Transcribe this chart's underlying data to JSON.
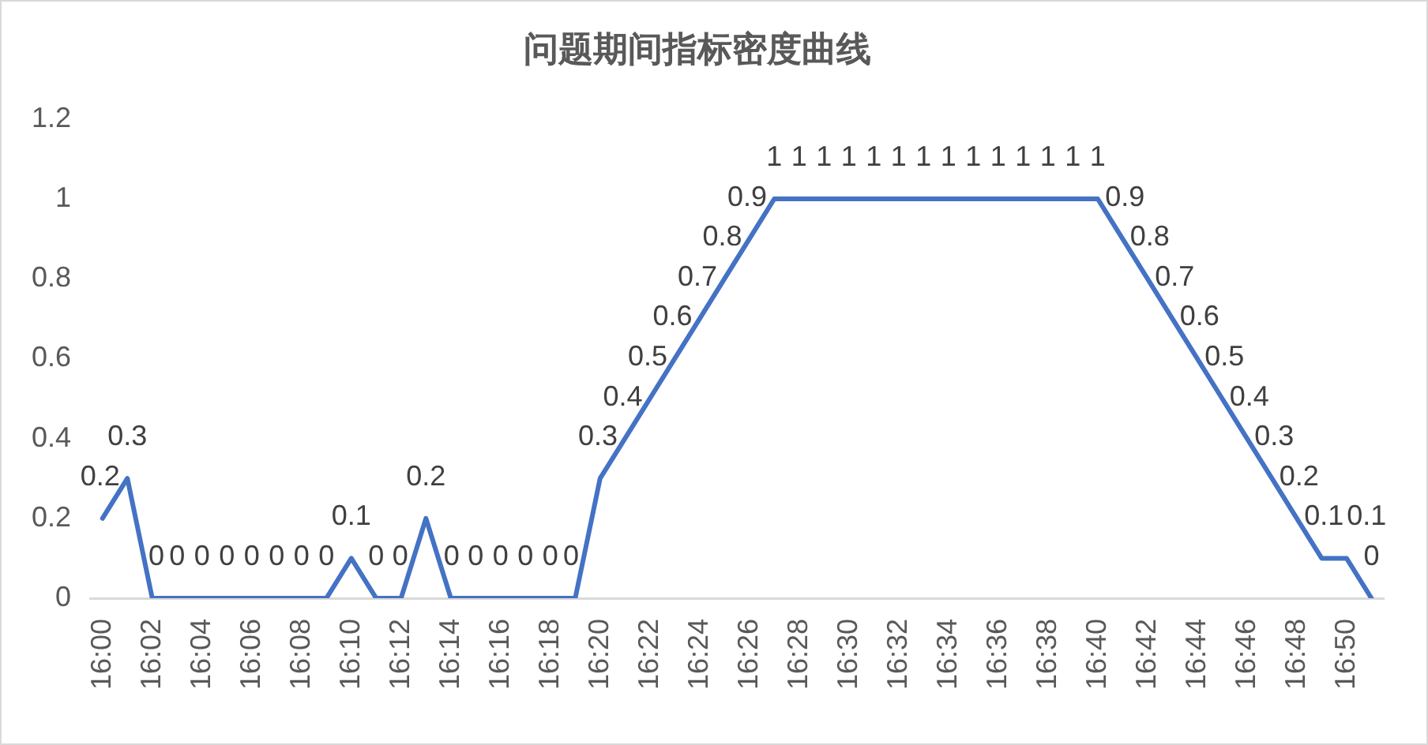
{
  "chart_data": {
    "type": "line",
    "title": "问题期间指标密度曲线",
    "categories": [
      "16:00",
      null,
      "16:02",
      null,
      "16:04",
      null,
      "16:06",
      null,
      "16:08",
      null,
      "16:10",
      null,
      "16:12",
      null,
      "16:14",
      null,
      "16:16",
      null,
      "16:18",
      null,
      "16:20",
      null,
      "16:22",
      null,
      "16:24",
      null,
      "16:26",
      null,
      "16:28",
      null,
      "16:30",
      null,
      "16:32",
      null,
      "16:34",
      null,
      "16:36",
      null,
      "16:38",
      null,
      "16:40",
      null,
      "16:42",
      null,
      "16:44",
      null,
      "16:46",
      null,
      "16:48",
      null,
      "16:50",
      null
    ],
    "series": [
      {
        "color": "#4472c4",
        "values": [
          0.2,
          0.3,
          0,
          0,
          0,
          0,
          0,
          0,
          0,
          0,
          0.1,
          0,
          0,
          0.2,
          0,
          0,
          0,
          0,
          0,
          0,
          0.3,
          0.4,
          0.5,
          0.6,
          0.7,
          0.8,
          0.9,
          1,
          1,
          1,
          1,
          1,
          1,
          1,
          1,
          1,
          1,
          1,
          1,
          1,
          1,
          0.9,
          0.8,
          0.7,
          0.6,
          0.5,
          0.4,
          0.3,
          0.2,
          0.1,
          0.1,
          0
        ]
      }
    ],
    "ylim": [
      0,
      1.2
    ],
    "yticks": [
      0,
      0.2,
      0.4,
      0.6,
      0.8,
      1,
      1.2
    ],
    "grid": false,
    "legend": false,
    "marker": "none",
    "line_style": "solid",
    "data_labels": true
  }
}
